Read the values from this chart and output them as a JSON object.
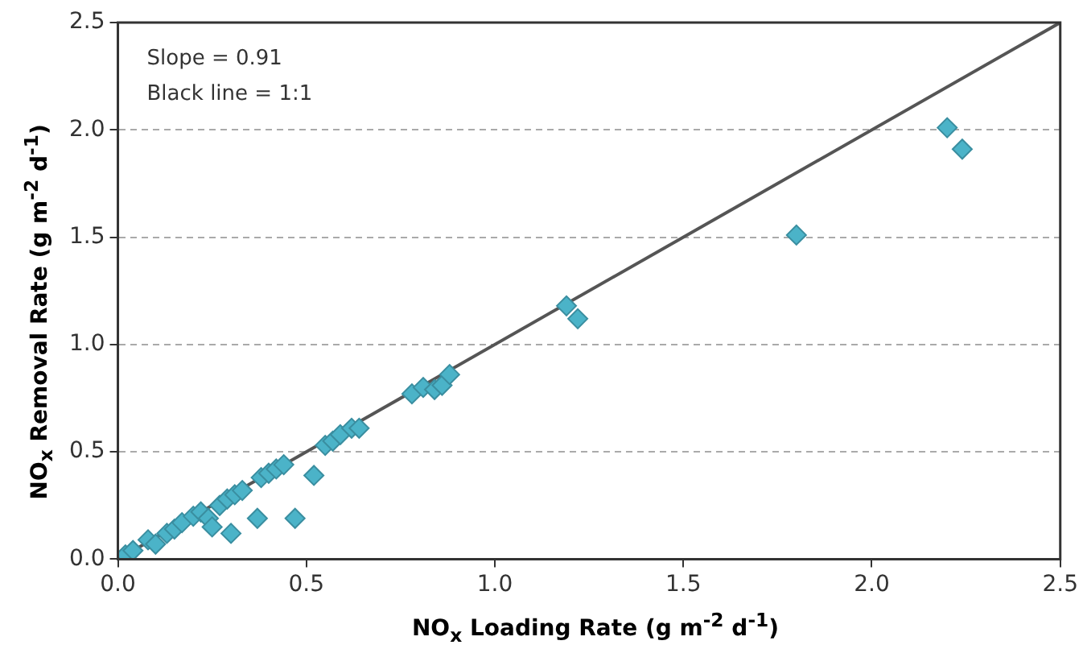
{
  "chart_data": {
    "type": "scatter",
    "xlabel": "NO$_{x}$ Loading Rate (g m$^{-2}$ d$^{-1}$)",
    "ylabel": "NO$_{x}$ Removal Rate (g m$^{-2}$ d$^{-1}$)",
    "annotations": [
      "Slope = 0.91",
      "Black line = 1:1"
    ],
    "xlim": [
      0,
      2.5
    ],
    "ylim": [
      0,
      2.5
    ],
    "xticks": [
      {
        "value": 0,
        "label": "0.0"
      },
      {
        "value": 0.5,
        "label": "0.5"
      },
      {
        "value": 1,
        "label": "1.0"
      },
      {
        "value": 1.5,
        "label": "1.5"
      },
      {
        "value": 2,
        "label": "2.0"
      },
      {
        "value": 2.5,
        "label": "2.5"
      }
    ],
    "yticks": [
      {
        "value": 0,
        "label": "0.0"
      },
      {
        "value": 0.5,
        "label": "0.5"
      },
      {
        "value": 1,
        "label": "1.0"
      },
      {
        "value": 1.5,
        "label": "1.5"
      },
      {
        "value": 2,
        "label": "2.0"
      },
      {
        "value": 2.5,
        "label": "2.5"
      }
    ],
    "grid": "y",
    "legend": false,
    "marker": "diamond",
    "series": [
      {
        "type": "line",
        "marker": "none",
        "color": "#555555",
        "x": [
          0,
          2.5
        ],
        "values": [
          0,
          2.5
        ]
      },
      {
        "color": "#4bb3c8",
        "x": [
          0.02,
          0.04,
          0.08,
          0.1,
          0.13,
          0.15,
          0.17,
          0.2,
          0.22,
          0.24,
          0.25,
          0.27,
          0.29,
          0.3,
          0.31,
          0.33,
          0.37,
          0.38,
          0.4,
          0.42,
          0.44,
          0.47,
          0.52,
          0.55,
          0.57,
          0.59,
          0.62,
          0.64,
          0.78,
          0.81,
          0.84,
          0.86,
          0.88,
          1.19,
          1.22,
          1.8,
          2.2,
          2.24
        ],
        "values": [
          0.02,
          0.04,
          0.09,
          0.07,
          0.12,
          0.14,
          0.17,
          0.2,
          0.22,
          0.19,
          0.15,
          0.25,
          0.28,
          0.12,
          0.3,
          0.32,
          0.19,
          0.38,
          0.4,
          0.42,
          0.44,
          0.19,
          0.39,
          0.53,
          0.55,
          0.58,
          0.61,
          0.61,
          0.77,
          0.8,
          0.79,
          0.81,
          0.86,
          1.18,
          1.12,
          1.51,
          2.01,
          1.91
        ]
      }
    ]
  }
}
